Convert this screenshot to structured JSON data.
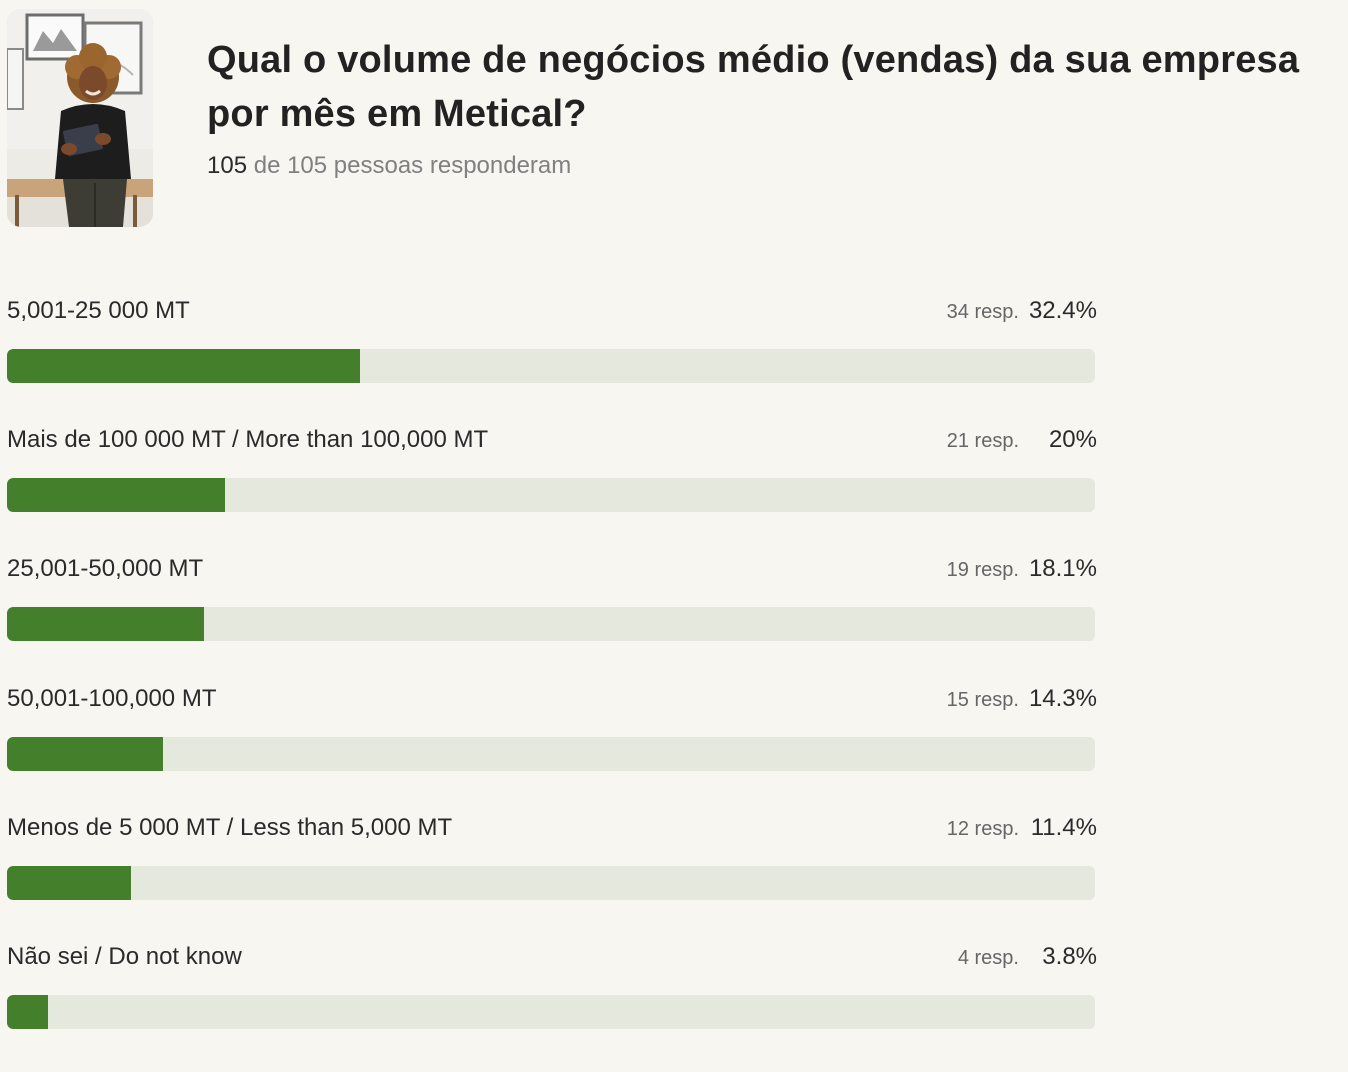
{
  "question": {
    "title": "Qual o volume de negócios médio (vendas) da sua empresa por mês em Metical?",
    "respondents_count": "105",
    "respondents_rest": " de 105 pessoas responderam"
  },
  "colors": {
    "bar_fill": "#447f2c",
    "bar_track": "#e5e8dc",
    "background": "#f7f6f1"
  },
  "chart_data": {
    "type": "bar",
    "orientation": "horizontal",
    "title": "Qual o volume de negócios médio (vendas) da sua empresa por mês em Metical?",
    "categories": [
      "5,001-25 000 MT",
      "Mais de 100 000 MT / More than 100,000 MT",
      "25,001-50,000 MT",
      "50,001-100,000 MT",
      "Menos de 5 000 MT / Less than 5,000 MT",
      "Não sei / Do not know"
    ],
    "values": [
      32.4,
      20,
      18.1,
      14.3,
      11.4,
      3.8
    ],
    "xlim": [
      0,
      100
    ],
    "rows": [
      {
        "label": "5,001-25 000 MT",
        "count": "34 resp.",
        "percent": "32.4%",
        "value": 32.4
      },
      {
        "label": "Mais de 100 000 MT / More than 100,000 MT",
        "count": "21 resp.",
        "percent": "20%",
        "value": 20
      },
      {
        "label": "25,001-50,000 MT",
        "count": "19 resp.",
        "percent": "18.1%",
        "value": 18.1
      },
      {
        "label": "50,001-100,000 MT",
        "count": "15 resp.",
        "percent": "14.3%",
        "value": 14.3
      },
      {
        "label": "Menos de 5 000 MT / Less than 5,000 MT",
        "count": "12 resp.",
        "percent": "11.4%",
        "value": 11.4
      },
      {
        "label": "Não sei / Do not know",
        "count": "4 resp.",
        "percent": "3.8%",
        "value": 3.8
      }
    ]
  }
}
